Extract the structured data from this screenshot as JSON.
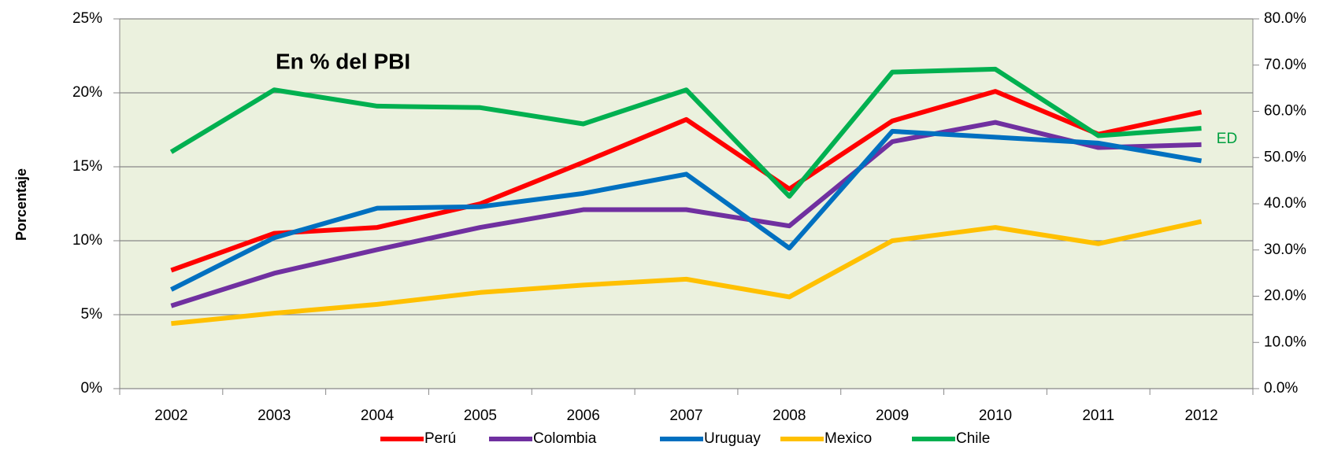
{
  "chart_data": {
    "type": "line",
    "annotations": {
      "title": "En % del PBI",
      "series_note": "ED"
    },
    "y_label": "Porcentaje",
    "categories": [
      "2002",
      "2003",
      "2004",
      "2005",
      "2006",
      "2007",
      "2008",
      "2009",
      "2010",
      "2011",
      "2012"
    ],
    "series": [
      {
        "name": "Perú",
        "color": "#ff0000",
        "values": [
          8.0,
          10.5,
          10.9,
          12.5,
          15.3,
          18.2,
          13.5,
          18.1,
          20.1,
          17.2,
          18.7
        ]
      },
      {
        "name": "Colombia",
        "color": "#7030a0",
        "values": [
          5.6,
          7.8,
          9.4,
          10.9,
          12.1,
          12.1,
          11.0,
          16.7,
          18.0,
          16.3,
          16.5
        ]
      },
      {
        "name": "Uruguay",
        "color": "#0070c0",
        "values": [
          6.7,
          10.2,
          12.2,
          12.3,
          13.2,
          14.5,
          9.5,
          17.4,
          17.0,
          16.6,
          15.4
        ]
      },
      {
        "name": "Mexico",
        "color": "#ffc000",
        "values": [
          4.4,
          5.1,
          5.7,
          6.5,
          7.0,
          7.4,
          6.2,
          10.0,
          10.9,
          9.8,
          11.3
        ]
      },
      {
        "name": "Chile",
        "color": "#00b050",
        "values": [
          16.0,
          20.2,
          19.1,
          19.0,
          17.9,
          20.2,
          13.0,
          21.4,
          21.6,
          17.1,
          17.6
        ]
      }
    ],
    "ylim": [
      0,
      25
    ],
    "yticks": [
      {
        "value": 0,
        "label": "0%"
      },
      {
        "value": 5,
        "label": "5%"
      },
      {
        "value": 10,
        "label": "10%"
      },
      {
        "value": 15,
        "label": "15%"
      },
      {
        "value": 20,
        "label": "20%"
      },
      {
        "value": 25,
        "label": "25%"
      }
    ],
    "y2lim": [
      0,
      80
    ],
    "y2ticks": [
      {
        "value": 0,
        "label": "0.0%"
      },
      {
        "value": 10,
        "label": "10.0%"
      },
      {
        "value": 20,
        "label": "20.0%"
      },
      {
        "value": 30,
        "label": "30.0%"
      },
      {
        "value": 40,
        "label": "40.0%"
      },
      {
        "value": 50,
        "label": "50.0%"
      },
      {
        "value": 60,
        "label": "60.0%"
      },
      {
        "value": 70,
        "label": "70.0%"
      },
      {
        "value": 80,
        "label": "80.0%"
      }
    ],
    "grid": true,
    "legend": "bottom"
  }
}
